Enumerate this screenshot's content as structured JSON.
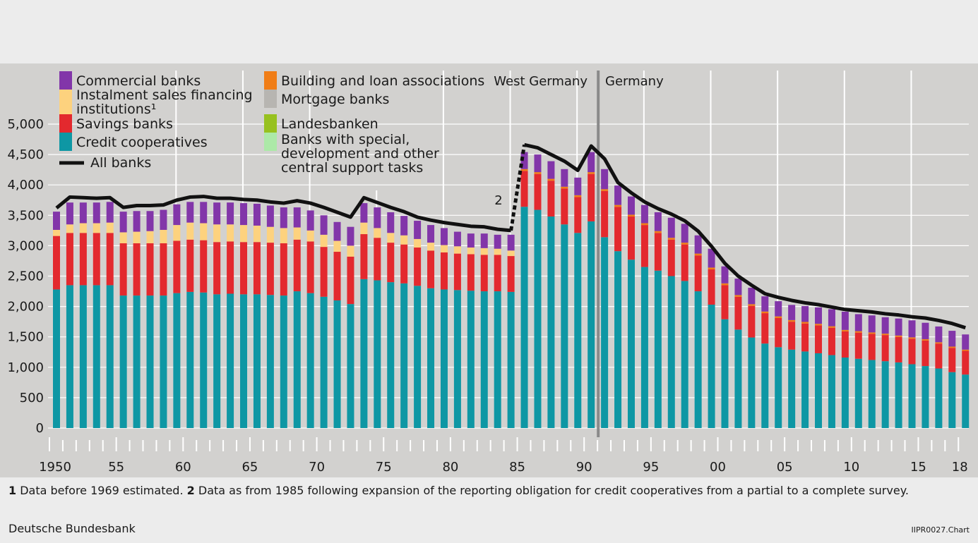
{
  "chart_data": {
    "type": "bar",
    "stacked": true,
    "grid": true,
    "legend_position": "top-left",
    "ylim": [
      0,
      5000
    ],
    "yticks": [
      "0",
      "500",
      "1,000",
      "1,500",
      "2,000",
      "2,500",
      "3,000",
      "3,500",
      "4,000",
      "4,500",
      "5,000"
    ],
    "xtick_labels": [
      "1950",
      "55",
      "60",
      "65",
      "70",
      "75",
      "80",
      "85",
      "90",
      "95",
      "00",
      "05",
      "10",
      "15",
      "18"
    ],
    "years": [
      1950,
      1951,
      1952,
      1953,
      1954,
      1955,
      1956,
      1957,
      1958,
      1959,
      1960,
      1961,
      1962,
      1963,
      1964,
      1965,
      1966,
      1967,
      1968,
      1969,
      1970,
      1971,
      1972,
      1973,
      1974,
      1975,
      1976,
      1977,
      1978,
      1979,
      1980,
      1981,
      1982,
      1983,
      1984,
      1985,
      1986,
      1987,
      1988,
      1989,
      1990,
      1991,
      1992,
      1993,
      1994,
      1995,
      1996,
      1997,
      1998,
      1999,
      2000,
      2001,
      2002,
      2003,
      2004,
      2005,
      2006,
      2007,
      2008,
      2009,
      2010,
      2011,
      2012,
      2013,
      2014,
      2015,
      2016,
      2017,
      2018
    ],
    "series": [
      {
        "name": "Credit cooperatives",
        "color": "#0e97a4",
        "values": [
          2280,
          2350,
          2350,
          2350,
          2350,
          2180,
          2180,
          2180,
          2180,
          2220,
          2240,
          2230,
          2200,
          2210,
          2200,
          2200,
          2190,
          2180,
          2250,
          2220,
          2160,
          2100,
          2040,
          2450,
          2430,
          2400,
          2380,
          2340,
          2300,
          2280,
          2270,
          2260,
          2250,
          2250,
          2240,
          3640,
          3590,
          3480,
          3350,
          3210,
          3400,
          3140,
          2910,
          2770,
          2650,
          2590,
          2500,
          2420,
          2250,
          2030,
          1790,
          1620,
          1490,
          1390,
          1330,
          1290,
          1260,
          1230,
          1200,
          1160,
          1140,
          1120,
          1100,
          1080,
          1050,
          1020,
          980,
          920,
          880
        ]
      },
      {
        "name": "Savings banks",
        "color": "#e3292e",
        "values": [
          880,
          860,
          860,
          860,
          860,
          860,
          860,
          860,
          860,
          860,
          860,
          860,
          860,
          860,
          860,
          860,
          860,
          860,
          850,
          850,
          820,
          800,
          780,
          740,
          700,
          650,
          640,
          630,
          620,
          610,
          600,
          600,
          600,
          600,
          590,
          590,
          590,
          590,
          590,
          590,
          780,
          760,
          730,
          710,
          690,
          620,
          600,
          600,
          590,
          580,
          560,
          540,
          520,
          500,
          480,
          460,
          460,
          460,
          450,
          430,
          430,
          430,
          430,
          420,
          420,
          420,
          410,
          400,
          390
        ]
      },
      {
        "name": "Instalment sales financing institutions¹",
        "color": "#fdd27e",
        "values": [
          100,
          140,
          160,
          160,
          170,
          180,
          190,
          200,
          220,
          260,
          280,
          280,
          290,
          280,
          280,
          270,
          260,
          250,
          200,
          180,
          200,
          180,
          180,
          190,
          160,
          160,
          150,
          140,
          130,
          120,
          120,
          110,
          110,
          100,
          90,
          0,
          0,
          0,
          0,
          0,
          0,
          0,
          0,
          0,
          0,
          0,
          0,
          0,
          0,
          0,
          0,
          0,
          0,
          0,
          0,
          0,
          0,
          0,
          0,
          0,
          0,
          0,
          0,
          0,
          0,
          0,
          0,
          0,
          0
        ]
      },
      {
        "name": "Building and loan associations",
        "color": "#f07d16",
        "values": [
          0,
          0,
          0,
          0,
          0,
          0,
          0,
          0,
          0,
          0,
          0,
          0,
          0,
          0,
          0,
          0,
          0,
          0,
          0,
          0,
          0,
          0,
          0,
          0,
          0,
          0,
          0,
          0,
          0,
          0,
          0,
          0,
          0,
          0,
          0,
          30,
          30,
          30,
          30,
          30,
          30,
          30,
          30,
          30,
          30,
          30,
          30,
          30,
          30,
          30,
          30,
          28,
          28,
          27,
          27,
          26,
          26,
          25,
          25,
          24,
          24,
          23,
          23,
          22,
          22,
          22,
          21,
          20,
          20
        ]
      },
      {
        "name": "Commercial banks",
        "color": "#8236a9",
        "values": [
          300,
          360,
          340,
          340,
          340,
          340,
          340,
          330,
          330,
          340,
          340,
          350,
          360,
          360,
          360,
          360,
          350,
          340,
          330,
          330,
          320,
          310,
          310,
          320,
          340,
          340,
          320,
          300,
          290,
          280,
          240,
          230,
          240,
          230,
          260,
          280,
          290,
          290,
          290,
          290,
          330,
          330,
          320,
          300,
          300,
          310,
          330,
          310,
          300,
          310,
          280,
          270,
          270,
          250,
          250,
          250,
          260,
          270,
          280,
          300,
          280,
          280,
          270,
          280,
          280,
          270,
          260,
          260,
          250
        ]
      }
    ],
    "total_line": {
      "name": "All banks",
      "color": "#111111",
      "values": [
        3620,
        3800,
        3790,
        3780,
        3790,
        3630,
        3660,
        3660,
        3670,
        3750,
        3800,
        3810,
        3780,
        3780,
        3760,
        3750,
        3720,
        3700,
        3740,
        3700,
        3630,
        3550,
        3470,
        3790,
        3710,
        3630,
        3560,
        3470,
        3420,
        3380,
        3350,
        3320,
        3310,
        3270,
        3250,
        4660,
        4610,
        4500,
        4390,
        4240,
        4640,
        4430,
        4040,
        3870,
        3720,
        3610,
        3520,
        3410,
        3240,
        2990,
        2710,
        2500,
        2350,
        2210,
        2150,
        2100,
        2060,
        2030,
        1990,
        1950,
        1930,
        1910,
        1880,
        1860,
        1830,
        1810,
        1770,
        1720,
        1650
      ]
    },
    "legend_extra": [
      {
        "name": "Mortgage banks",
        "color": "#b7b5b1"
      },
      {
        "name": "Landesbanken",
        "color": "#97c11f"
      },
      {
        "name": "Banks with special,\ndevelopment and other\ncentral support tasks",
        "color": "#ace9a8"
      }
    ],
    "annotations": {
      "region_left": "West Germany",
      "region_right": "Germany",
      "note_marker": "2"
    }
  },
  "footnotes": {
    "n1_num": "1",
    "n1_text": " Data before 1969 estimated. ",
    "n2_num": "2",
    "n2_text": " Data as from 1985 following expansion of the reporting obligation for credit cooperatives from a partial to a complete survey."
  },
  "source": "Deutsche Bundesbank",
  "chart_id": "IIPR0027.Chart"
}
